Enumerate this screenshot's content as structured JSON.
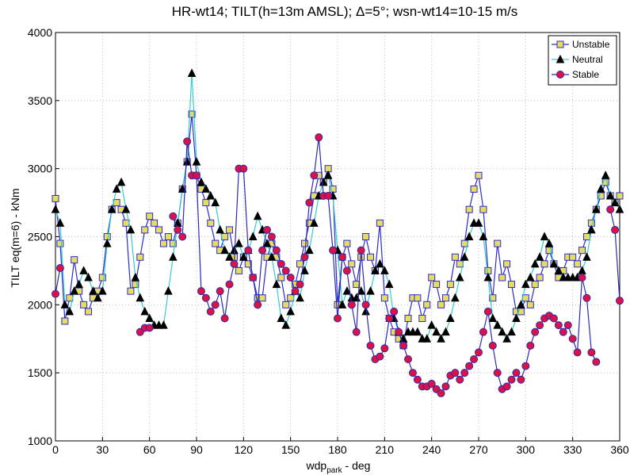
{
  "chart_data": {
    "type": "line",
    "title": "HR-wt14; TILT(h=13m AMSL); Δ=5°; wsn-wt14=10-15 m/s",
    "x_label": {
      "text": "wdp",
      "subscript": "park",
      "suffix": " - deg"
    },
    "y_label": "TILT eq(m=6) - kNm",
    "x": [
      0,
      3,
      6,
      9,
      12,
      15,
      18,
      21,
      24,
      27,
      30,
      33,
      36,
      39,
      42,
      45,
      48,
      51,
      54,
      57,
      60,
      63,
      66,
      69,
      72,
      75,
      78,
      81,
      84,
      87,
      90,
      93,
      96,
      99,
      102,
      105,
      108,
      111,
      114,
      117,
      120,
      123,
      126,
      129,
      132,
      135,
      138,
      141,
      144,
      147,
      150,
      153,
      156,
      159,
      162,
      165,
      168,
      171,
      174,
      177,
      180,
      183,
      186,
      189,
      192,
      195,
      198,
      201,
      204,
      207,
      210,
      213,
      216,
      219,
      222,
      225,
      228,
      231,
      234,
      237,
      240,
      243,
      246,
      249,
      252,
      255,
      258,
      261,
      264,
      267,
      270,
      273,
      276,
      279,
      282,
      285,
      288,
      291,
      294,
      297,
      300,
      303,
      306,
      309,
      312,
      315,
      318,
      321,
      324,
      327,
      330,
      333,
      336,
      339,
      342,
      345,
      348,
      351,
      354,
      357,
      360
    ],
    "series": [
      {
        "name": "Unstable",
        "color": "#2b2bd0",
        "marker": "square",
        "marker_color": "#e6dc64",
        "values": [
          2780,
          2450,
          1880,
          2050,
          2330,
          2100,
          2000,
          1950,
          2050,
          2100,
          2200,
          2500,
          2700,
          2750,
          2700,
          2600,
          2100,
          2150,
          2350,
          2550,
          2650,
          2600,
          2550,
          2450,
          2500,
          2450,
          2600,
          2850,
          3050,
          3400,
          2950,
          2850,
          2750,
          2600,
          2450,
          2400,
          2500,
          2550,
          2350,
          2250,
          2350,
          2300,
          2200,
          2050,
          2050,
          2350,
          2450,
          2350,
          2200,
          2000,
          2050,
          2150,
          2300,
          2450,
          2600,
          2800,
          2950,
          2900,
          3000,
          2850,
          2000,
          2350,
          2450,
          2300,
          2150,
          2350,
          2500,
          2350,
          2250,
          2600,
          2050,
          1900,
          1800,
          1750,
          1700,
          1900,
          2050,
          2050,
          1900,
          2000,
          2200,
          2150,
          2000,
          2050,
          2150,
          2350,
          2300,
          2450,
          2700,
          2850,
          2950,
          2700,
          2250,
          2050,
          2450,
          2200,
          2300,
          2150,
          1950,
          1950,
          2050,
          2000,
          2150,
          2200,
          2300,
          2400,
          2300,
          2200,
          2250,
          2350,
          2350,
          2300,
          2400,
          2500,
          2600,
          2700,
          2800,
          2900,
          2800,
          2750,
          2800
        ]
      },
      {
        "name": "Neutral",
        "color": "#33cccc",
        "marker": "triangle",
        "marker_color": "#000000",
        "values": [
          2700,
          2600,
          2000,
          1950,
          2100,
          2150,
          2250,
          2200,
          2100,
          2050,
          2100,
          2450,
          2700,
          2850,
          2900,
          2700,
          2550,
          2200,
          2050,
          1950,
          1900,
          1850,
          1850,
          1850,
          2100,
          2350,
          2600,
          2850,
          3050,
          3700,
          3050,
          2900,
          2850,
          2800,
          2750,
          2550,
          2400,
          2350,
          2400,
          2450,
          2350,
          2400,
          2500,
          2650,
          2550,
          2450,
          2350,
          2150,
          1900,
          1850,
          1950,
          2100,
          2050,
          2250,
          2400,
          2600,
          2800,
          2900,
          2950,
          2800,
          2400,
          2000,
          2100,
          2050,
          2050,
          2100,
          1950,
          2100,
          2250,
          2300,
          2250,
          2150,
          1900,
          1800,
          1750,
          1800,
          1800,
          1800,
          1750,
          1750,
          1850,
          1800,
          1750,
          1800,
          1900,
          2050,
          2200,
          2350,
          2500,
          2600,
          2600,
          2500,
          2200,
          1900,
          1850,
          1800,
          1750,
          1800,
          1900,
          2000,
          2150,
          2200,
          2300,
          2350,
          2500,
          2450,
          2300,
          2250,
          2200,
          2200,
          2200,
          2200,
          2250,
          2350,
          2550,
          2700,
          2850,
          2950,
          2800,
          2750,
          2700
        ]
      },
      {
        "name": "Stable",
        "color": "#2b2bb0",
        "marker": "circle",
        "marker_color": "#dd1144",
        "values": [
          2080,
          2270,
          null,
          null,
          null,
          null,
          null,
          null,
          null,
          null,
          null,
          null,
          null,
          null,
          null,
          null,
          null,
          null,
          1800,
          1830,
          1830,
          null,
          null,
          null,
          null,
          2650,
          2550,
          2500,
          3200,
          2950,
          2950,
          2100,
          2050,
          1950,
          2000,
          2100,
          1900,
          2150,
          2300,
          3000,
          3000,
          2400,
          2200,
          2000,
          2400,
          2550,
          2500,
          2400,
          2300,
          2250,
          2200,
          2100,
          2150,
          2350,
          2750,
          2950,
          3230,
          2800,
          2800,
          2400,
          1900,
          2350,
          2250,
          2000,
          1800,
          2400,
          2000,
          1700,
          1600,
          1620,
          1680,
          1900,
          1950,
          1800,
          1700,
          1600,
          1500,
          1450,
          1400,
          1400,
          1420,
          1380,
          1350,
          1400,
          1480,
          1500,
          1450,
          1500,
          1550,
          1600,
          1650,
          1800,
          1950,
          1700,
          1500,
          1380,
          1400,
          1450,
          1500,
          1450,
          1550,
          1700,
          1800,
          1850,
          1900,
          1920,
          1900,
          1850,
          1800,
          1850,
          1750,
          1650,
          2200,
          2050,
          1650,
          1580,
          null,
          null,
          2700,
          2550,
          2030
        ]
      }
    ],
    "xlim": [
      0,
      360
    ],
    "xticks": [
      0,
      30,
      60,
      90,
      120,
      150,
      180,
      210,
      240,
      270,
      300,
      330,
      360
    ],
    "ylim": [
      1000,
      4000
    ],
    "yticks": [
      1000,
      1500,
      2000,
      2500,
      3000,
      3500,
      4000
    ],
    "grid": true,
    "legend": "upper right"
  }
}
